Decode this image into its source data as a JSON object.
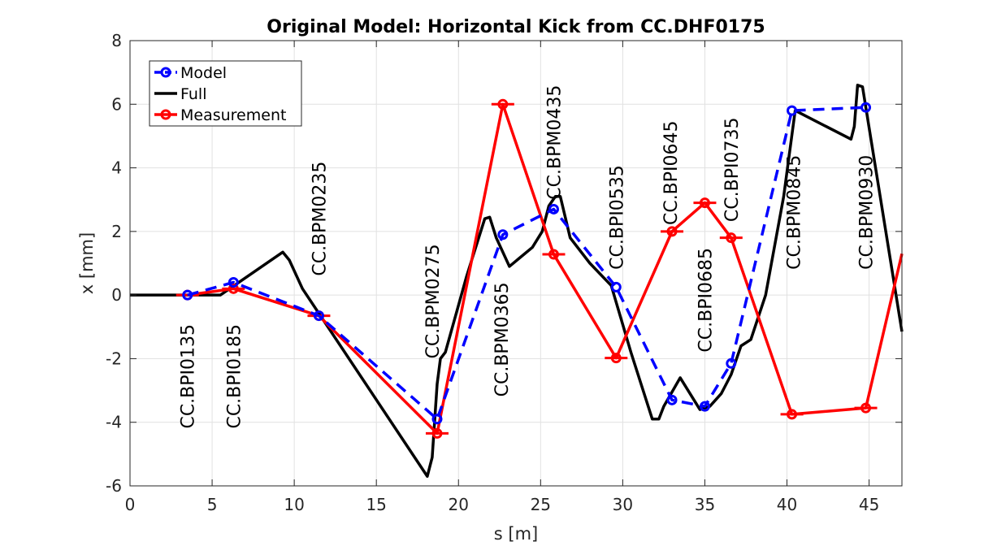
{
  "chart_data": {
    "type": "line",
    "title": "Original Model: Horizontal Kick from CC.DHF0175",
    "xlabel": "s [m]",
    "ylabel": "x [mm]",
    "xlim": [
      0,
      47
    ],
    "ylim": [
      -6,
      8
    ],
    "xticks": [
      0,
      5,
      10,
      15,
      20,
      25,
      30,
      35,
      40,
      45
    ],
    "yticks": [
      -6,
      -4,
      -2,
      0,
      2,
      4,
      6,
      8
    ],
    "grid": true,
    "legend_position": "top-left",
    "series": [
      {
        "name": "Model",
        "color": "#0000ff",
        "style": "dashed-circle-markers",
        "x": [
          3.5,
          6.3,
          11.5,
          18.7,
          22.7,
          25.8,
          29.6,
          33.0,
          35.0,
          36.6,
          40.3,
          44.8
        ],
        "y": [
          0.0,
          0.4,
          -0.65,
          -3.9,
          1.9,
          2.7,
          0.25,
          -3.3,
          -3.5,
          -2.15,
          5.8,
          5.9
        ]
      },
      {
        "name": "Full",
        "color": "#000000",
        "style": "solid",
        "x": [
          0,
          5.5,
          9.3,
          9.7,
          10.5,
          18.1,
          18.4,
          18.7,
          18.9,
          19.2,
          20.5,
          21.6,
          21.9,
          22.3,
          23.1,
          24.5,
          25.1,
          25.5,
          25.9,
          26.2,
          26.8,
          28.0,
          29.3,
          30.5,
          31.8,
          32.2,
          32.5,
          33.5,
          34.7,
          35.3,
          36.0,
          36.6,
          37.2,
          37.8,
          38.7,
          39.8,
          40.5,
          43.9,
          44.1,
          44.3,
          44.6,
          47.0
        ],
        "y": [
          0.0,
          0.0,
          1.35,
          1.1,
          0.2,
          -5.7,
          -5.1,
          -2.8,
          -2.0,
          -1.8,
          0.6,
          2.4,
          2.45,
          1.8,
          0.9,
          1.5,
          2.0,
          2.8,
          3.1,
          3.1,
          1.8,
          1.0,
          0.3,
          -1.8,
          -3.9,
          -3.9,
          -3.5,
          -2.6,
          -3.6,
          -3.5,
          -3.1,
          -2.5,
          -1.6,
          -1.4,
          0.0,
          3.1,
          5.8,
          4.9,
          5.3,
          6.6,
          6.55,
          -1.15
        ]
      },
      {
        "name": "Measurement",
        "color": "#ff0000",
        "style": "solid-circle-markers",
        "x": [
          3.5,
          6.3,
          11.5,
          18.7,
          22.7,
          25.8,
          29.6,
          33.0,
          35.0,
          36.6,
          40.3,
          44.8,
          47.0
        ],
        "y": [
          0.0,
          0.2,
          -0.65,
          -4.35,
          6.0,
          1.28,
          -1.98,
          2.0,
          2.9,
          1.8,
          -3.75,
          -3.55,
          1.3
        ]
      }
    ],
    "annotations": [
      {
        "text": "CC.BPI0135",
        "x": 3.5,
        "y": -4.2
      },
      {
        "text": "CC.BPI0185",
        "x": 6.3,
        "y": -4.2
      },
      {
        "text": "CC.BPM0235",
        "x": 11.5,
        "y": 0.6
      },
      {
        "text": "CC.BPM0275",
        "x": 18.4,
        "y": -2.0
      },
      {
        "text": "CC.BPM0365",
        "x": 22.6,
        "y": -3.2
      },
      {
        "text": "CC.BPM0435",
        "x": 25.8,
        "y": 3.0
      },
      {
        "text": "CC.BPI0535",
        "x": 29.6,
        "y": 0.8
      },
      {
        "text": "CC.BPI0645",
        "x": 32.9,
        "y": 2.2
      },
      {
        "text": "CC.BPI0685",
        "x": 35.0,
        "y": -1.8
      },
      {
        "text": "CC.BPI0735",
        "x": 36.6,
        "y": 2.3
      },
      {
        "text": "CC.BPM0845",
        "x": 40.4,
        "y": 0.8
      },
      {
        "text": "CC.BPM0930",
        "x": 44.8,
        "y": 0.8
      }
    ]
  }
}
